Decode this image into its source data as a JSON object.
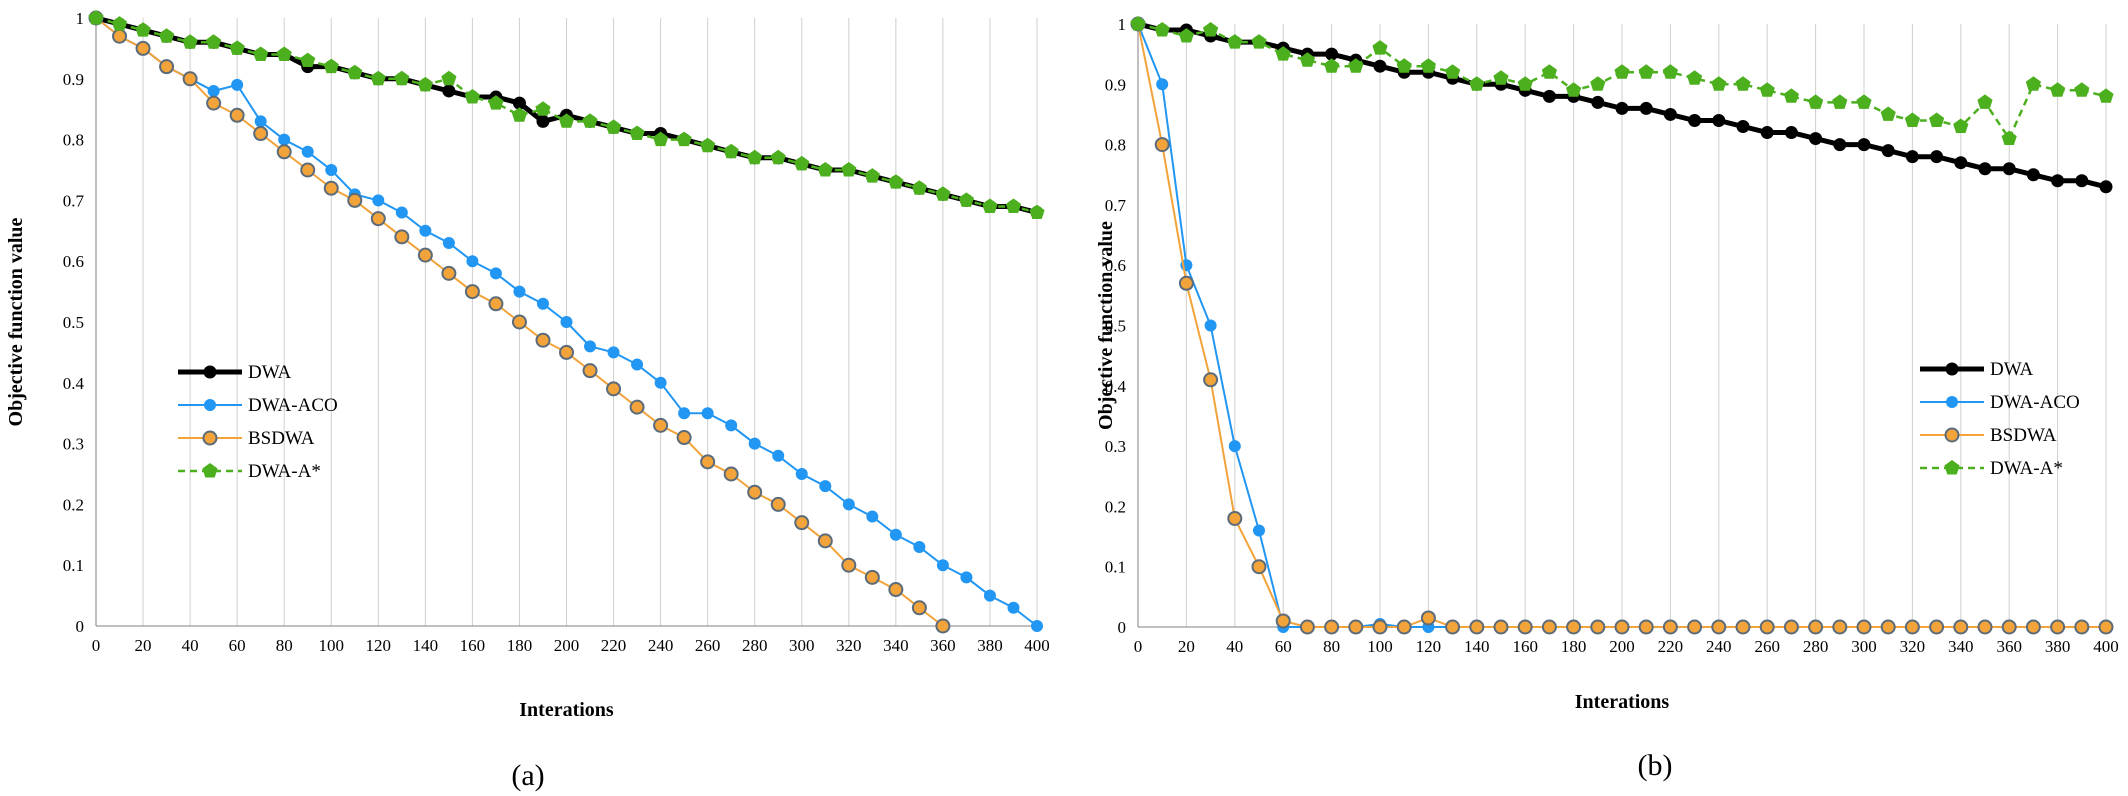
{
  "chart_data": [
    {
      "type": "line",
      "caption": "(a)",
      "xlabel": "Interations",
      "ylabel": "Objective function value",
      "xlim": [
        0,
        400
      ],
      "ylim": [
        0,
        1
      ],
      "xticks": [
        "0",
        "20",
        "40",
        "60",
        "80",
        "100",
        "120",
        "140",
        "160",
        "180",
        "200",
        "220",
        "240",
        "260",
        "280",
        "300",
        "320",
        "340",
        "360",
        "380",
        "400"
      ],
      "yticks": [
        "0",
        "0.1",
        "0.2",
        "0.3",
        "0.4",
        "0.5",
        "0.6",
        "0.7",
        "0.8",
        "0.9",
        "1"
      ],
      "grid": "vertical",
      "legend_position": "left-middle",
      "series": [
        {
          "name": "DWA",
          "color": "#000000",
          "style": "solid-thick",
          "marker": "circle",
          "x": [
            0,
            10,
            20,
            30,
            40,
            50,
            60,
            70,
            80,
            90,
            100,
            110,
            120,
            130,
            140,
            150,
            160,
            170,
            180,
            190,
            200,
            210,
            220,
            230,
            240,
            250,
            260,
            270,
            280,
            290,
            300,
            310,
            320,
            330,
            340,
            350,
            360,
            370,
            380,
            390,
            400
          ],
          "y": [
            1,
            0.99,
            0.98,
            0.97,
            0.96,
            0.96,
            0.95,
            0.94,
            0.94,
            0.92,
            0.92,
            0.91,
            0.9,
            0.9,
            0.89,
            0.88,
            0.87,
            0.87,
            0.86,
            0.83,
            0.84,
            0.83,
            0.82,
            0.81,
            0.81,
            0.8,
            0.79,
            0.78,
            0.77,
            0.77,
            0.76,
            0.75,
            0.75,
            0.74,
            0.73,
            0.72,
            0.71,
            0.7,
            0.69,
            0.69,
            0.68
          ]
        },
        {
          "name": "DWA-ACO",
          "color": "#2196f3",
          "style": "solid",
          "marker": "circle",
          "x": [
            0,
            10,
            20,
            30,
            40,
            50,
            60,
            70,
            80,
            90,
            100,
            110,
            120,
            130,
            140,
            150,
            160,
            170,
            180,
            190,
            200,
            210,
            220,
            230,
            240,
            250,
            260,
            270,
            280,
            290,
            300,
            310,
            320,
            330,
            340,
            350,
            360,
            370,
            380,
            390,
            400
          ],
          "y": [
            1,
            0.97,
            0.95,
            0.92,
            0.9,
            0.88,
            0.89,
            0.83,
            0.8,
            0.78,
            0.75,
            0.71,
            0.7,
            0.68,
            0.65,
            0.63,
            0.6,
            0.58,
            0.55,
            0.53,
            0.5,
            0.46,
            0.45,
            0.43,
            0.4,
            0.35,
            0.35,
            0.33,
            0.3,
            0.28,
            0.25,
            0.23,
            0.2,
            0.18,
            0.15,
            0.13,
            0.1,
            0.08,
            0.05,
            0.03,
            0.0
          ]
        },
        {
          "name": "BSDWA",
          "color": "#f2a33a",
          "style": "solid",
          "marker": "circle-outlined",
          "x": [
            0,
            10,
            20,
            30,
            40,
            50,
            60,
            70,
            80,
            90,
            100,
            110,
            120,
            130,
            140,
            150,
            160,
            170,
            180,
            190,
            200,
            210,
            220,
            230,
            240,
            250,
            260,
            270,
            280,
            290,
            300,
            310,
            320,
            330,
            340,
            350,
            360
          ],
          "y": [
            1,
            0.97,
            0.95,
            0.92,
            0.9,
            0.86,
            0.84,
            0.81,
            0.78,
            0.75,
            0.72,
            0.7,
            0.67,
            0.64,
            0.61,
            0.58,
            0.55,
            0.53,
            0.5,
            0.47,
            0.45,
            0.42,
            0.39,
            0.36,
            0.33,
            0.31,
            0.27,
            0.25,
            0.22,
            0.2,
            0.17,
            0.14,
            0.1,
            0.08,
            0.06,
            0.03,
            0.0
          ]
        },
        {
          "name": "DWA-A*",
          "color": "#4caf1e",
          "style": "dashed",
          "marker": "pentagon",
          "x": [
            0,
            10,
            20,
            30,
            40,
            50,
            60,
            70,
            80,
            90,
            100,
            110,
            120,
            130,
            140,
            150,
            160,
            170,
            180,
            190,
            200,
            210,
            220,
            230,
            240,
            250,
            260,
            270,
            280,
            290,
            300,
            310,
            320,
            330,
            340,
            350,
            360,
            370,
            380,
            390,
            400
          ],
          "y": [
            1,
            0.99,
            0.98,
            0.97,
            0.96,
            0.96,
            0.95,
            0.94,
            0.94,
            0.93,
            0.92,
            0.91,
            0.9,
            0.9,
            0.89,
            0.9,
            0.87,
            0.86,
            0.84,
            0.85,
            0.83,
            0.83,
            0.82,
            0.81,
            0.8,
            0.8,
            0.79,
            0.78,
            0.77,
            0.77,
            0.76,
            0.75,
            0.75,
            0.74,
            0.73,
            0.72,
            0.71,
            0.7,
            0.69,
            0.69,
            0.68
          ]
        }
      ]
    },
    {
      "type": "line",
      "caption": "(b)",
      "xlabel": "Interations",
      "ylabel": "Objective function value",
      "xlim": [
        0,
        400
      ],
      "ylim": [
        0,
        1
      ],
      "xticks": [
        "0",
        "20",
        "40",
        "60",
        "80",
        "100",
        "120",
        "140",
        "160",
        "180",
        "200",
        "220",
        "240",
        "260",
        "280",
        "300",
        "320",
        "340",
        "360",
        "380",
        "400"
      ],
      "yticks": [
        "0",
        "0.1",
        "0.2",
        "0.3",
        "0.4",
        "0.5",
        "0.6",
        "0.7",
        "0.8",
        "0.9",
        "1"
      ],
      "grid": "vertical",
      "legend_position": "right-middle",
      "series": [
        {
          "name": "DWA",
          "color": "#000000",
          "style": "solid-thick",
          "marker": "circle",
          "x": [
            0,
            10,
            20,
            30,
            40,
            50,
            60,
            70,
            80,
            90,
            100,
            110,
            120,
            130,
            140,
            150,
            160,
            170,
            180,
            190,
            200,
            210,
            220,
            230,
            240,
            250,
            260,
            270,
            280,
            290,
            300,
            310,
            320,
            330,
            340,
            350,
            360,
            370,
            380,
            390,
            400
          ],
          "y": [
            1,
            0.99,
            0.99,
            0.98,
            0.97,
            0.97,
            0.96,
            0.95,
            0.95,
            0.94,
            0.93,
            0.92,
            0.92,
            0.91,
            0.9,
            0.9,
            0.89,
            0.88,
            0.88,
            0.87,
            0.86,
            0.86,
            0.85,
            0.84,
            0.84,
            0.83,
            0.82,
            0.82,
            0.81,
            0.8,
            0.8,
            0.79,
            0.78,
            0.78,
            0.77,
            0.76,
            0.76,
            0.75,
            0.74,
            0.74,
            0.73
          ]
        },
        {
          "name": "DWA-ACO",
          "color": "#2196f3",
          "style": "solid",
          "marker": "circle",
          "x": [
            0,
            10,
            20,
            30,
            40,
            50,
            60,
            70,
            80,
            90,
            100,
            110,
            120,
            130,
            140,
            150,
            160,
            170,
            180,
            190,
            200,
            210,
            220,
            230,
            240,
            250,
            260,
            270,
            280,
            290,
            300,
            310,
            320,
            330,
            340,
            350,
            360,
            370,
            380,
            390,
            400
          ],
          "y": [
            1,
            0.9,
            0.6,
            0.5,
            0.3,
            0.16,
            0,
            0,
            0,
            0,
            0.005,
            0,
            0,
            0,
            0,
            0,
            0,
            0,
            0,
            0,
            0,
            0,
            0,
            0,
            0,
            0,
            0,
            0,
            0,
            0,
            0,
            0,
            0,
            0,
            0,
            0,
            0,
            0,
            0,
            0,
            0
          ]
        },
        {
          "name": "BSDWA",
          "color": "#f2a33a",
          "style": "solid",
          "marker": "circle-outlined",
          "x": [
            0,
            10,
            20,
            30,
            40,
            50,
            60,
            70,
            80,
            90,
            100,
            110,
            120,
            130,
            140,
            150,
            160,
            170,
            180,
            190,
            200,
            210,
            220,
            230,
            240,
            250,
            260,
            270,
            280,
            290,
            300,
            310,
            320,
            330,
            340,
            350,
            360,
            370,
            380,
            390,
            400
          ],
          "y": [
            1,
            0.8,
            0.57,
            0.41,
            0.18,
            0.1,
            0.01,
            0,
            0,
            0,
            0,
            0,
            0.015,
            0,
            0,
            0,
            0,
            0,
            0,
            0,
            0,
            0,
            0,
            0,
            0,
            0,
            0,
            0,
            0,
            0,
            0,
            0,
            0,
            0,
            0,
            0,
            0,
            0,
            0,
            0,
            0
          ]
        },
        {
          "name": "DWA-A*",
          "color": "#4caf1e",
          "style": "dashed",
          "marker": "pentagon",
          "x": [
            0,
            10,
            20,
            30,
            40,
            50,
            60,
            70,
            80,
            90,
            100,
            110,
            120,
            130,
            140,
            150,
            160,
            170,
            180,
            190,
            200,
            210,
            220,
            230,
            240,
            250,
            260,
            270,
            280,
            290,
            300,
            310,
            320,
            330,
            340,
            350,
            360,
            370,
            380,
            390,
            400
          ],
          "y": [
            1,
            0.99,
            0.98,
            0.99,
            0.97,
            0.97,
            0.95,
            0.94,
            0.93,
            0.93,
            0.96,
            0.93,
            0.93,
            0.92,
            0.9,
            0.91,
            0.9,
            0.92,
            0.89,
            0.9,
            0.92,
            0.92,
            0.92,
            0.91,
            0.9,
            0.9,
            0.89,
            0.88,
            0.87,
            0.87,
            0.87,
            0.85,
            0.84,
            0.84,
            0.83,
            0.87,
            0.81,
            0.9,
            0.89,
            0.89,
            0.88
          ]
        }
      ]
    }
  ]
}
